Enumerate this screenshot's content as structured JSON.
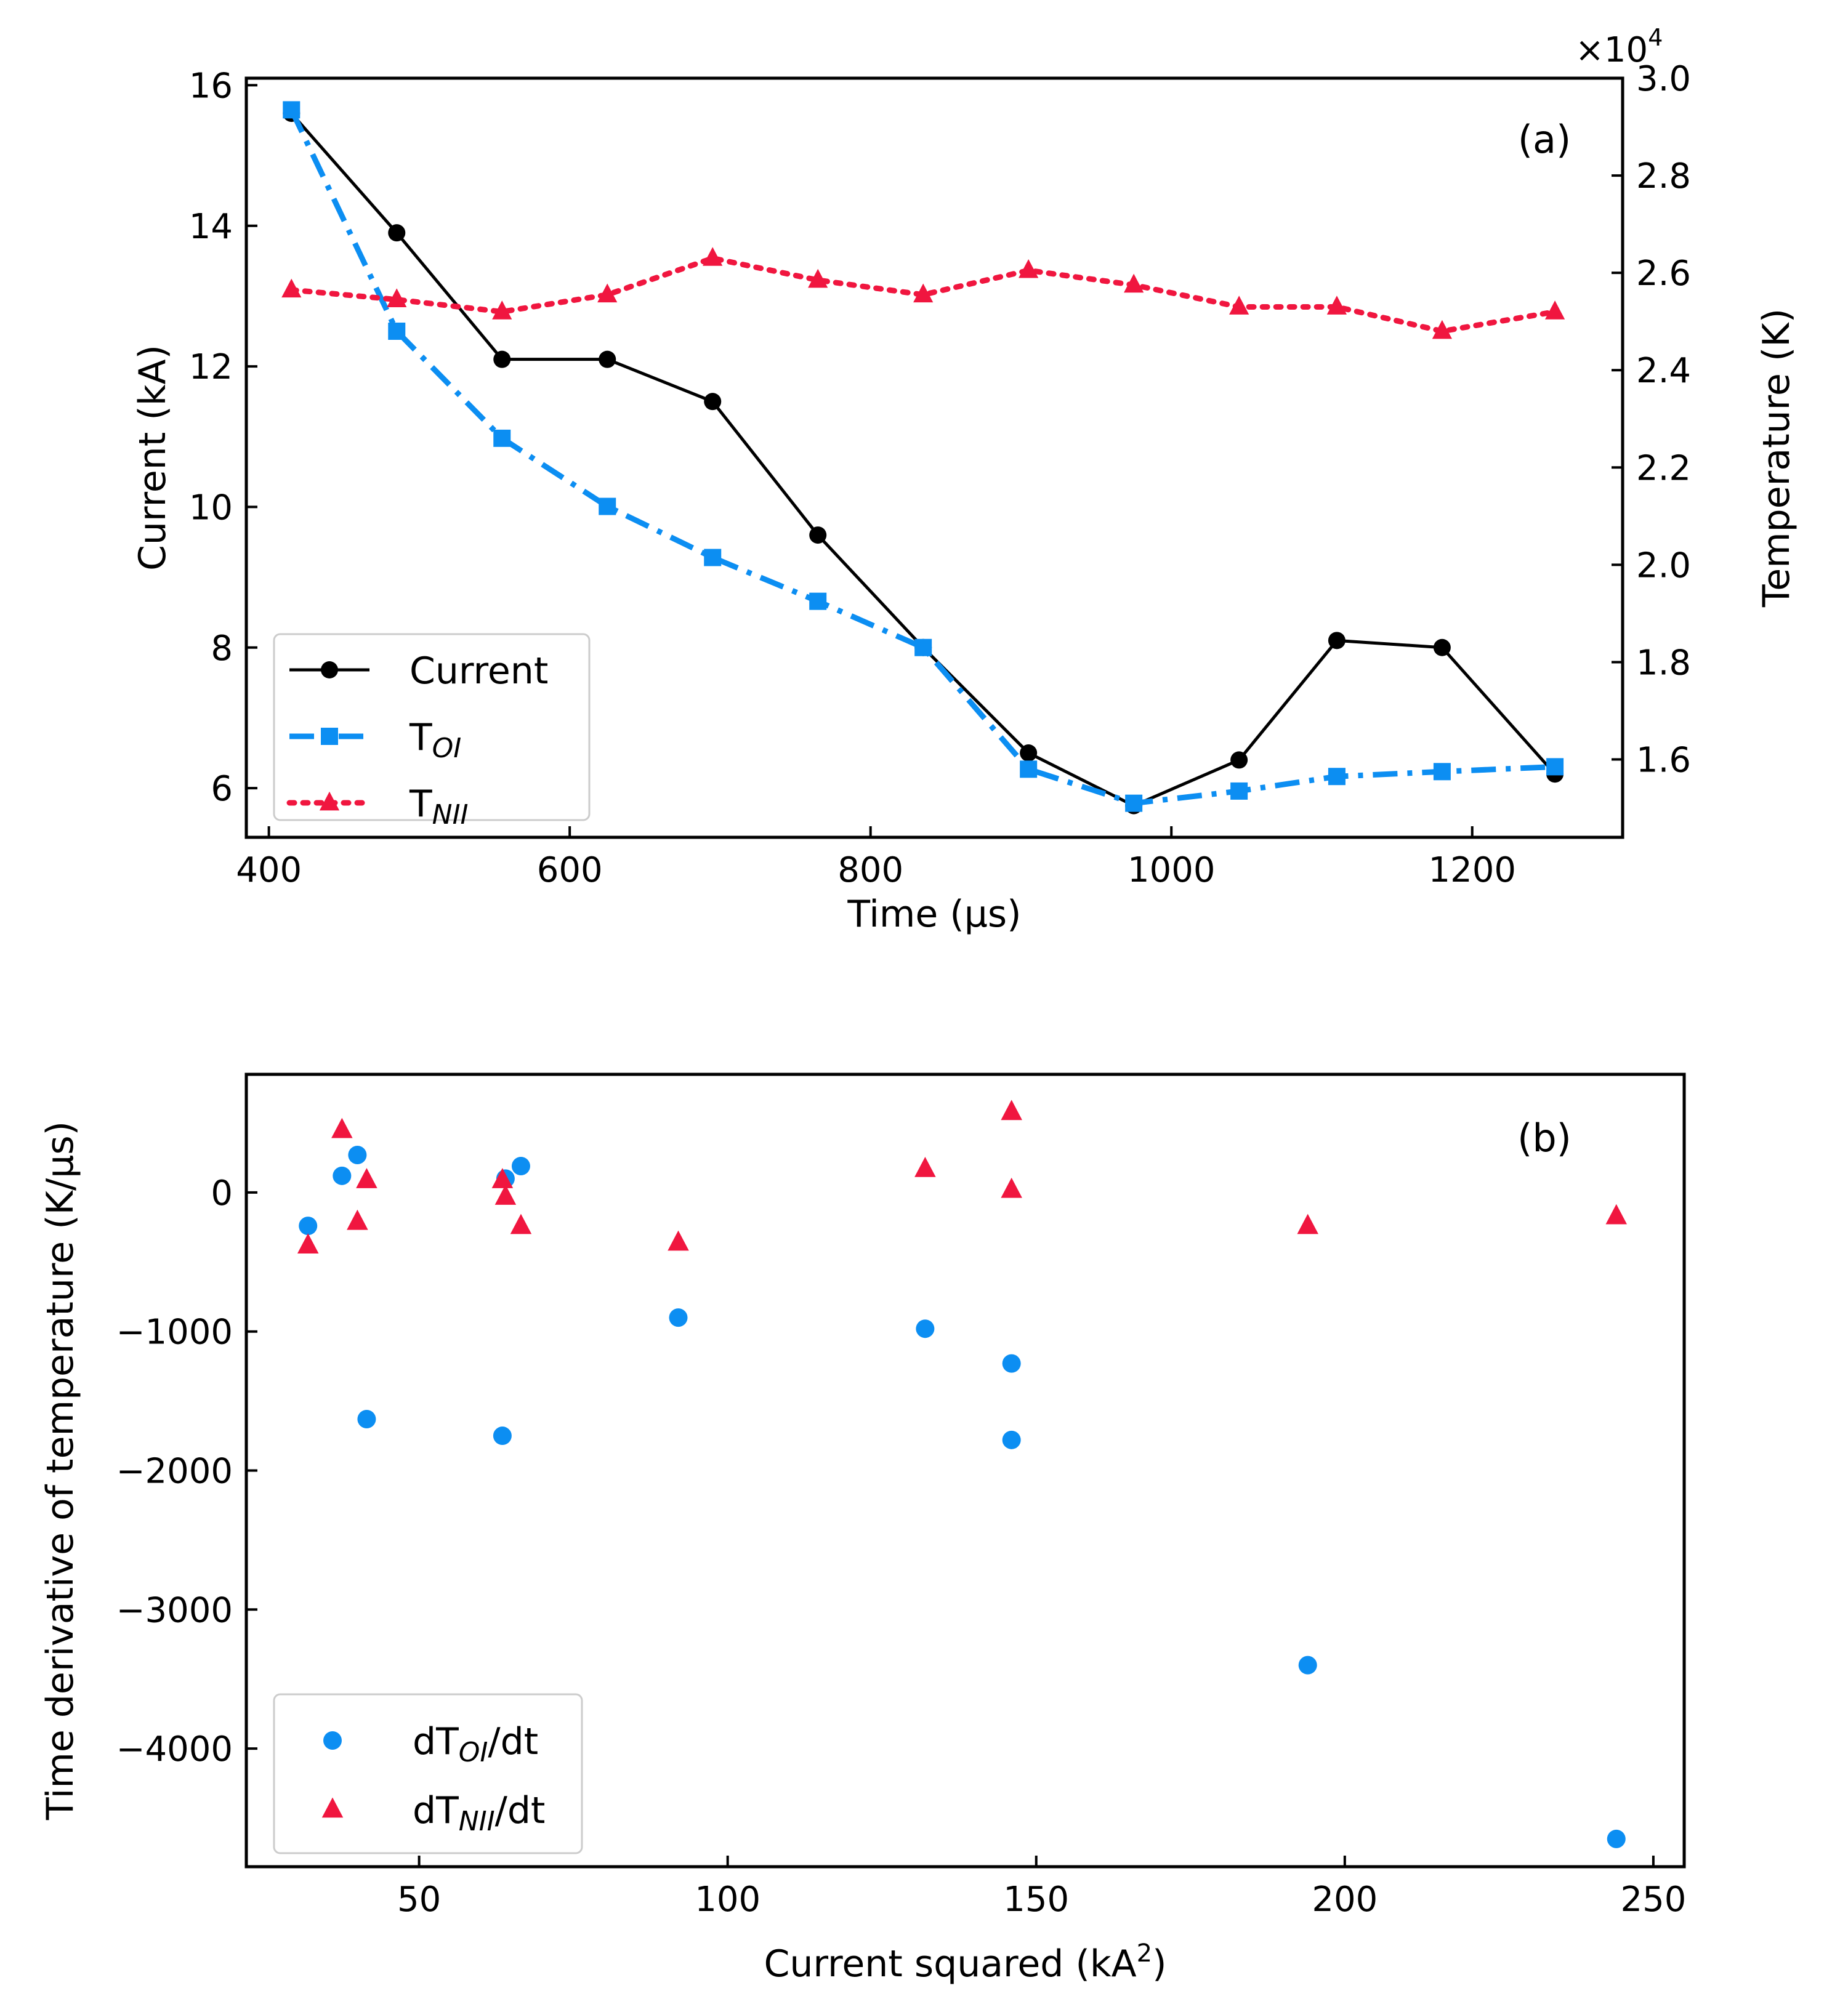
{
  "chart_data": [
    {
      "type": "line",
      "panel_label": "(a)",
      "xlabel": "Time (µs)",
      "ylabel_left": "Current (kA)",
      "ylabel_right": "Temperature (K)",
      "right_axis_multiplier": "×10",
      "right_axis_multiplier_exp": "4",
      "xlim": [
        385,
        1300
      ],
      "ylim_left": [
        5.3,
        16.1
      ],
      "ylim_right": [
        14400,
        30000
      ],
      "xticks": [
        400,
        600,
        800,
        1000,
        1200
      ],
      "yticks_left": [
        6,
        8,
        10,
        12,
        14,
        16
      ],
      "yticks_right": [
        16000,
        18000,
        20000,
        22000,
        24000,
        26000,
        28000,
        30000
      ],
      "yticklabels_right": [
        "1.6",
        "1.8",
        "2.0",
        "2.2",
        "2.4",
        "2.6",
        "2.8",
        "3.0"
      ],
      "legend_position": "lower left",
      "series": [
        {
          "name": "Current",
          "axis": "left",
          "color": "#000000",
          "marker": "circle",
          "linestyle": "solid",
          "x": [
            415,
            485,
            555,
            625,
            695,
            765,
            835,
            905,
            975,
            1045,
            1110,
            1180,
            1255
          ],
          "y": [
            15.6,
            13.9,
            12.1,
            12.1,
            11.5,
            9.6,
            8.0,
            6.5,
            5.75,
            6.4,
            8.1,
            8.0,
            6.2
          ]
        },
        {
          "name": "T",
          "name_sub": "OI",
          "axis": "right",
          "color": "#0c8ef2",
          "marker": "square",
          "linestyle": "dashdot",
          "x": [
            415,
            485,
            555,
            625,
            695,
            765,
            835,
            905,
            975,
            1045,
            1110,
            1180,
            1255
          ],
          "y": [
            29350,
            24800,
            22600,
            21200,
            20150,
            19250,
            18300,
            15800,
            15100,
            15350,
            15650,
            15750,
            15850
          ]
        },
        {
          "name": "T",
          "name_sub": "NII",
          "axis": "right",
          "color": "#f0163f",
          "marker": "triangle",
          "linestyle": "dotted",
          "x": [
            415,
            485,
            555,
            625,
            695,
            765,
            835,
            905,
            975,
            1045,
            1110,
            1180,
            1255
          ],
          "y": [
            25650,
            25450,
            25200,
            25550,
            26300,
            25850,
            25550,
            26050,
            25750,
            25300,
            25300,
            24800,
            25200
          ]
        }
      ]
    },
    {
      "type": "scatter",
      "panel_label": "(b)",
      "xlabel": "Current squared (kA",
      "xlabel_sup": "2",
      "xlabel_end": ")",
      "ylabel": "Time derivative of temperature (K/µs)",
      "xlim": [
        22,
        255
      ],
      "ylim": [
        -4850,
        850
      ],
      "xticks": [
        50,
        100,
        150,
        200,
        250
      ],
      "yticks": [
        -4000,
        -3000,
        -2000,
        -1000,
        0
      ],
      "yticklabels": [
        "−4000",
        "−3000",
        "−2000",
        "−1000",
        "0"
      ],
      "legend_position": "lower left",
      "series": [
        {
          "name": "dT",
          "name_sub": "OI",
          "name_end": "/dt",
          "color": "#0c8ef2",
          "marker": "circle",
          "x": [
            32,
            37.5,
            40,
            41.5,
            63.5,
            64,
            66.5,
            92,
            132,
            146,
            146,
            194,
            244
          ],
          "y": [
            -240,
            120,
            270,
            -1630,
            -1750,
            100,
            190,
            -900,
            -980,
            -1230,
            -1780,
            -3400,
            -4650
          ]
        },
        {
          "name": "dT",
          "name_sub": "NII",
          "name_end": "/dt",
          "color": "#f0163f",
          "marker": "triangle",
          "x": [
            32,
            37.5,
            40,
            41.5,
            63.5,
            64,
            66.5,
            92,
            132,
            146,
            146,
            194,
            244
          ],
          "y": [
            -380,
            450,
            -210,
            90,
            90,
            -30,
            -240,
            -360,
            170,
            580,
            20,
            -240,
            -170
          ]
        }
      ]
    }
  ]
}
